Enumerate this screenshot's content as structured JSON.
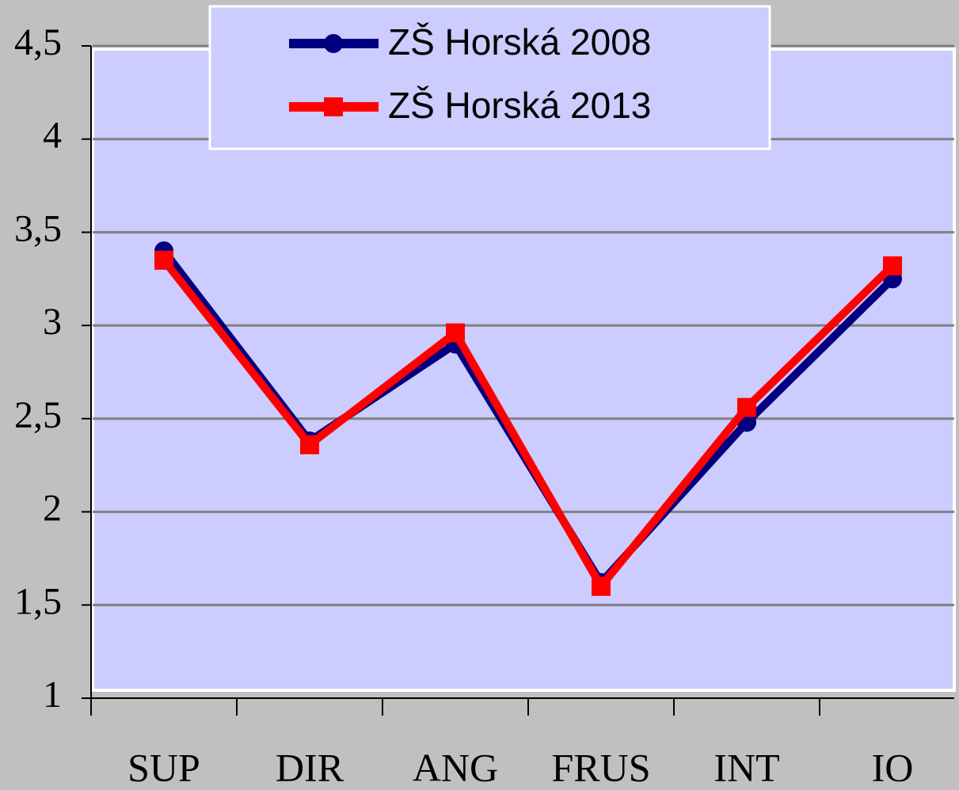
{
  "chart_data": {
    "type": "line",
    "categories": [
      "SUP",
      "DIR",
      "ANG",
      "FRUS",
      "INT",
      "IO"
    ],
    "series": [
      {
        "name": "ZŠ Horská 2008",
        "color": "#000080",
        "values": [
          3.4,
          2.38,
          2.9,
          1.62,
          2.48,
          3.25
        ]
      },
      {
        "name": "ZŠ Horská 2013",
        "color": "#ff0000",
        "values": [
          3.35,
          2.36,
          2.96,
          1.6,
          2.56,
          3.32
        ]
      }
    ],
    "ylim": [
      1,
      4.5
    ],
    "yticks": [
      1,
      {
        "value": 1.5,
        "label": "1,5"
      },
      2,
      {
        "value": 2.5,
        "label": "2,5"
      },
      3,
      {
        "value": 3.5,
        "label": "3,5"
      },
      4,
      {
        "value": 4.5,
        "label": "4,5"
      }
    ],
    "grid": true,
    "legend": "top"
  }
}
